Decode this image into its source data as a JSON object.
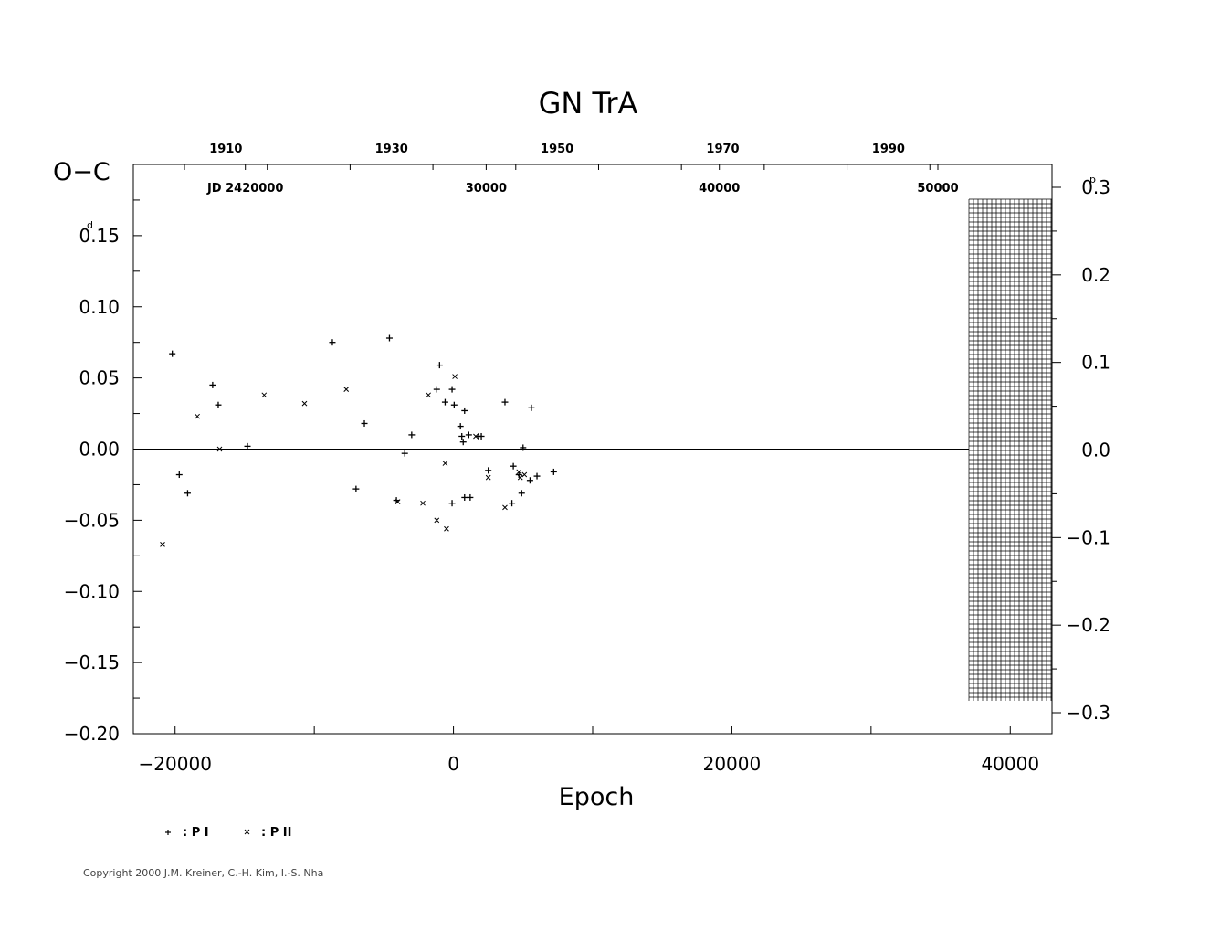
{
  "chart_data": {
    "type": "scatter",
    "title": "GN  TrA",
    "ylabel": "O−C",
    "xlabel": "Epoch",
    "xlim": [
      -23000,
      43000
    ],
    "ylim": [
      -0.2,
      0.2
    ],
    "yunit_sup": "d",
    "right_ylim": [
      -0.3,
      0.3
    ],
    "right_unit_sup": "p",
    "x_ticks": [
      -20000,
      0,
      20000,
      40000
    ],
    "x_tick_labels": [
      "−20000",
      "0",
      "20000",
      "40000"
    ],
    "y_ticks": [
      -0.2,
      -0.15,
      -0.1,
      -0.05,
      0.0,
      0.05,
      0.1,
      0.15
    ],
    "y_tick_labels": [
      "−0.20",
      "−0.15",
      "−0.10",
      "−0.05",
      "0.00",
      "0.05",
      "0.10",
      "0.15"
    ],
    "right_ticks": [
      -0.3,
      -0.2,
      -0.1,
      0.0,
      0.1,
      0.2,
      0.3
    ],
    "right_tick_labels": [
      "−0.3",
      "−0.2",
      "−0.1",
      "0.0",
      "0.1",
      "0.2",
      "0.3"
    ],
    "year_ticks": [
      1910,
      1930,
      1950,
      1970,
      1990
    ],
    "year_tick_labels": [
      "1910",
      "1930",
      "1950",
      "1970",
      "1990"
    ],
    "year_tick_epochs": [
      -16350,
      -4450,
      7450,
      19350,
      31250
    ],
    "jd_ticks": [
      20000,
      30000,
      40000,
      50000
    ],
    "jd_tick_labels": [
      "JD  2420000",
      "30000",
      "40000",
      "50000"
    ],
    "jd_tick_epochs": [
      -14950,
      2350,
      19100,
      34800
    ],
    "series": [
      {
        "name": "P I",
        "marker": "plus",
        "points": [
          [
            -20200,
            0.067
          ],
          [
            -19700,
            -0.018
          ],
          [
            -19100,
            -0.031
          ],
          [
            -17300,
            0.045
          ],
          [
            -16900,
            0.031
          ],
          [
            -14800,
            0.002
          ],
          [
            -8700,
            0.075
          ],
          [
            -7000,
            -0.028
          ],
          [
            -6400,
            0.018
          ],
          [
            -4600,
            0.078
          ],
          [
            -4100,
            -0.036
          ],
          [
            -3500,
            -0.003
          ],
          [
            -3000,
            0.01
          ],
          [
            -1200,
            0.042
          ],
          [
            -1000,
            0.059
          ],
          [
            -600,
            0.033
          ],
          [
            -100,
            0.042
          ],
          [
            50,
            0.031
          ],
          [
            -100,
            -0.038
          ],
          [
            500,
            0.016
          ],
          [
            600,
            0.009
          ],
          [
            700,
            0.005
          ],
          [
            800,
            0.027
          ],
          [
            800,
            -0.034
          ],
          [
            1100,
            0.01
          ],
          [
            1200,
            -0.034
          ],
          [
            1800,
            0.009
          ],
          [
            2000,
            0.009
          ],
          [
            2500,
            -0.015
          ],
          [
            3700,
            0.033
          ],
          [
            4200,
            -0.038
          ],
          [
            4300,
            -0.012
          ],
          [
            4700,
            -0.018
          ],
          [
            5000,
            0.001
          ],
          [
            5500,
            -0.022
          ],
          [
            5600,
            0.029
          ],
          [
            6000,
            -0.019
          ],
          [
            7200,
            -0.016
          ],
          [
            4900,
            -0.031
          ]
        ]
      },
      {
        "name": "P II",
        "marker": "cross",
        "points": [
          [
            -20900,
            -0.067
          ],
          [
            -18400,
            0.023
          ],
          [
            -16800,
            0.0
          ],
          [
            -13600,
            0.038
          ],
          [
            -10700,
            0.032
          ],
          [
            -7700,
            0.042
          ],
          [
            -4000,
            -0.037
          ],
          [
            -2200,
            -0.038
          ],
          [
            -1800,
            0.038
          ],
          [
            -1200,
            -0.05
          ],
          [
            -600,
            -0.01
          ],
          [
            -500,
            -0.056
          ],
          [
            100,
            0.051
          ],
          [
            1600,
            0.009
          ],
          [
            2500,
            -0.02
          ],
          [
            3700,
            -0.041
          ],
          [
            4800,
            -0.02
          ],
          [
            5100,
            -0.018
          ],
          [
            4700,
            -0.016
          ]
        ]
      }
    ],
    "legend": [
      "+ : P I",
      "× : P II"
    ]
  },
  "legend_labels": {
    "p1": ": P I",
    "p2": ": P II"
  },
  "copyright": "Copyright 2000 J.M. Kreiner, C.-H. Kim, I.-S. Nha"
}
